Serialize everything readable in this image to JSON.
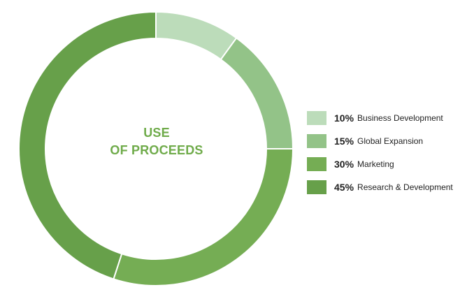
{
  "center_title": {
    "line1": "USE",
    "line2": "OF PROCEEDS"
  },
  "chart_data": {
    "type": "pie",
    "title": "USE OF PROCEEDS",
    "variant": "donut",
    "legend_position": "right",
    "categories": [
      "Business Development",
      "Global Expansion",
      "Marketing",
      "Research & Development"
    ],
    "values": [
      10,
      15,
      30,
      45
    ],
    "value_labels": [
      "10%",
      "15%",
      "30%",
      "45%"
    ],
    "colors": [
      "#bcdcba",
      "#93c388",
      "#75ad54",
      "#67a04a"
    ]
  }
}
